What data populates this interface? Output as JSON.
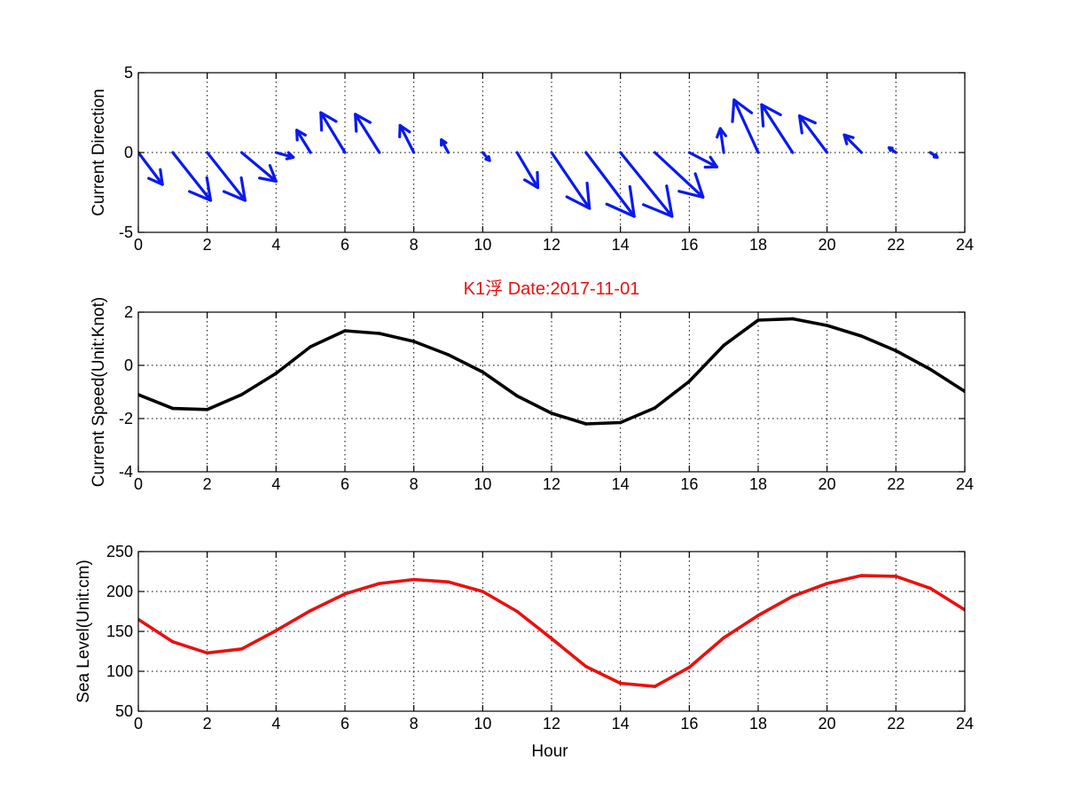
{
  "figure": {
    "title": "K1浮    Date:2017-11-01",
    "title_color": "#e8110f"
  },
  "chart_data": [
    {
      "type": "quiver",
      "title": "",
      "xlabel": "",
      "ylabel": "Current Direction",
      "xlim": [
        0,
        24
      ],
      "ylim": [
        -5,
        5
      ],
      "xticks": [
        0,
        2,
        4,
        6,
        8,
        10,
        12,
        14,
        16,
        18,
        20,
        22,
        24
      ],
      "yticks": [
        -5,
        0,
        5
      ],
      "grid": true,
      "color": "#0a1aee",
      "series": [
        {
          "x": [
            0,
            1,
            2,
            3,
            4,
            5,
            6,
            7,
            8,
            9,
            10,
            11,
            12,
            13,
            14,
            15,
            16,
            17,
            18,
            19,
            20,
            21,
            22,
            23
          ],
          "u": [
            0.7,
            1.1,
            1.1,
            1.0,
            0.5,
            -0.4,
            -0.7,
            -0.7,
            -0.4,
            -0.2,
            0.2,
            0.6,
            1.1,
            1.4,
            1.5,
            1.4,
            0.8,
            -0.1,
            -0.7,
            -0.9,
            -0.8,
            -0.5,
            -0.2,
            0.2
          ],
          "v": [
            -2.0,
            -3.0,
            -3.0,
            -1.8,
            -0.3,
            1.4,
            2.5,
            2.4,
            1.7,
            0.8,
            -0.5,
            -2.2,
            -3.5,
            -4.0,
            -4.0,
            -2.8,
            -0.9,
            1.5,
            3.3,
            3.0,
            2.3,
            1.1,
            0.3,
            -0.3
          ]
        }
      ]
    },
    {
      "type": "line",
      "title": "",
      "xlabel": "",
      "ylabel": "Current Speed(Unit:Knot)",
      "xlim": [
        0,
        24
      ],
      "ylim": [
        -4,
        2
      ],
      "xticks": [
        0,
        2,
        4,
        6,
        8,
        10,
        12,
        14,
        16,
        18,
        20,
        22,
        24
      ],
      "yticks": [
        -4,
        -2,
        0,
        2
      ],
      "grid": true,
      "series": [
        {
          "color": "#000000",
          "x": [
            0,
            1,
            2,
            3,
            4,
            5,
            6,
            7,
            8,
            9,
            10,
            11,
            12,
            13,
            14,
            15,
            16,
            17,
            18,
            19,
            20,
            21,
            22,
            23,
            24
          ],
          "y": [
            -1.1,
            -1.62,
            -1.66,
            -1.1,
            -0.3,
            0.7,
            1.3,
            1.2,
            0.9,
            0.4,
            -0.25,
            -1.15,
            -1.8,
            -2.2,
            -2.15,
            -1.6,
            -0.6,
            0.75,
            1.7,
            1.75,
            1.5,
            1.1,
            0.55,
            -0.15,
            -0.98
          ]
        }
      ]
    },
    {
      "type": "line",
      "title": "",
      "xlabel": "Hour",
      "ylabel": "Sea Level(Unit:cm)",
      "xlim": [
        0,
        24
      ],
      "ylim": [
        50,
        250
      ],
      "xticks": [
        0,
        2,
        4,
        6,
        8,
        10,
        12,
        14,
        16,
        18,
        20,
        22,
        24
      ],
      "yticks": [
        50,
        100,
        150,
        200,
        250
      ],
      "grid": true,
      "series": [
        {
          "color": "#e8110f",
          "x": [
            0,
            1,
            2,
            3,
            4,
            5,
            6,
            7,
            8,
            9,
            10,
            11,
            12,
            13,
            14,
            15,
            16,
            17,
            18,
            19,
            20,
            21,
            22,
            23,
            24
          ],
          "y": [
            165,
            137,
            123,
            128,
            151,
            176,
            197,
            210,
            215,
            212,
            200,
            175,
            141,
            106,
            85,
            81,
            105,
            142,
            170,
            194,
            210,
            220,
            219,
            204,
            177
          ]
        }
      ]
    }
  ]
}
